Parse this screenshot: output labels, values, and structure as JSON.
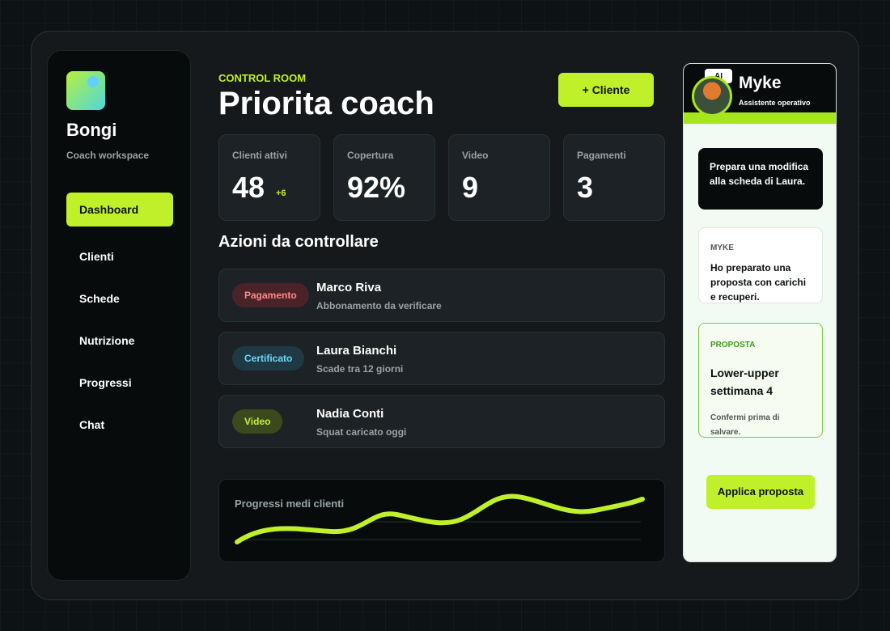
{
  "sidebar": {
    "brand": "Bongi",
    "subtitle": "Coach workspace",
    "nav": [
      "Dashboard",
      "Clienti",
      "Schede",
      "Nutrizione",
      "Progressi",
      "Chat"
    ]
  },
  "header": {
    "eyebrow": "CONTROL ROOM",
    "title": "Priorita coach",
    "action": "+ Cliente"
  },
  "stats": [
    {
      "label": "Clienti attivi",
      "value": "48",
      "delta": "+6"
    },
    {
      "label": "Copertura",
      "value": "92%"
    },
    {
      "label": "Video",
      "value": "9"
    },
    {
      "label": "Pagamenti",
      "value": "3"
    }
  ],
  "actions": {
    "title": "Azioni da controllare",
    "items": [
      {
        "tag": "Pagamento",
        "name": "Marco Riva",
        "detail": "Abbonamento da verificare"
      },
      {
        "tag": "Certificato",
        "name": "Laura Bianchi",
        "detail": "Scade tra 12 giorni"
      },
      {
        "tag": "Video",
        "name": "Nadia Conti",
        "detail": "Squat caricato oggi"
      }
    ]
  },
  "progress": {
    "title": "Progressi medi clienti"
  },
  "assistant": {
    "badge": "AI",
    "name": "Myke",
    "role": "Assistente operativo",
    "request": "Prepara una modifica alla scheda di Laura.",
    "reply": {
      "sender": "MYKE",
      "text": "Ho preparato una proposta con carichi e recuperi."
    },
    "proposal": {
      "label": "PROPOSTA",
      "title": "Lower-upper settimana 4",
      "note": "Confermi prima di salvare."
    },
    "action": "Applica proposta"
  }
}
